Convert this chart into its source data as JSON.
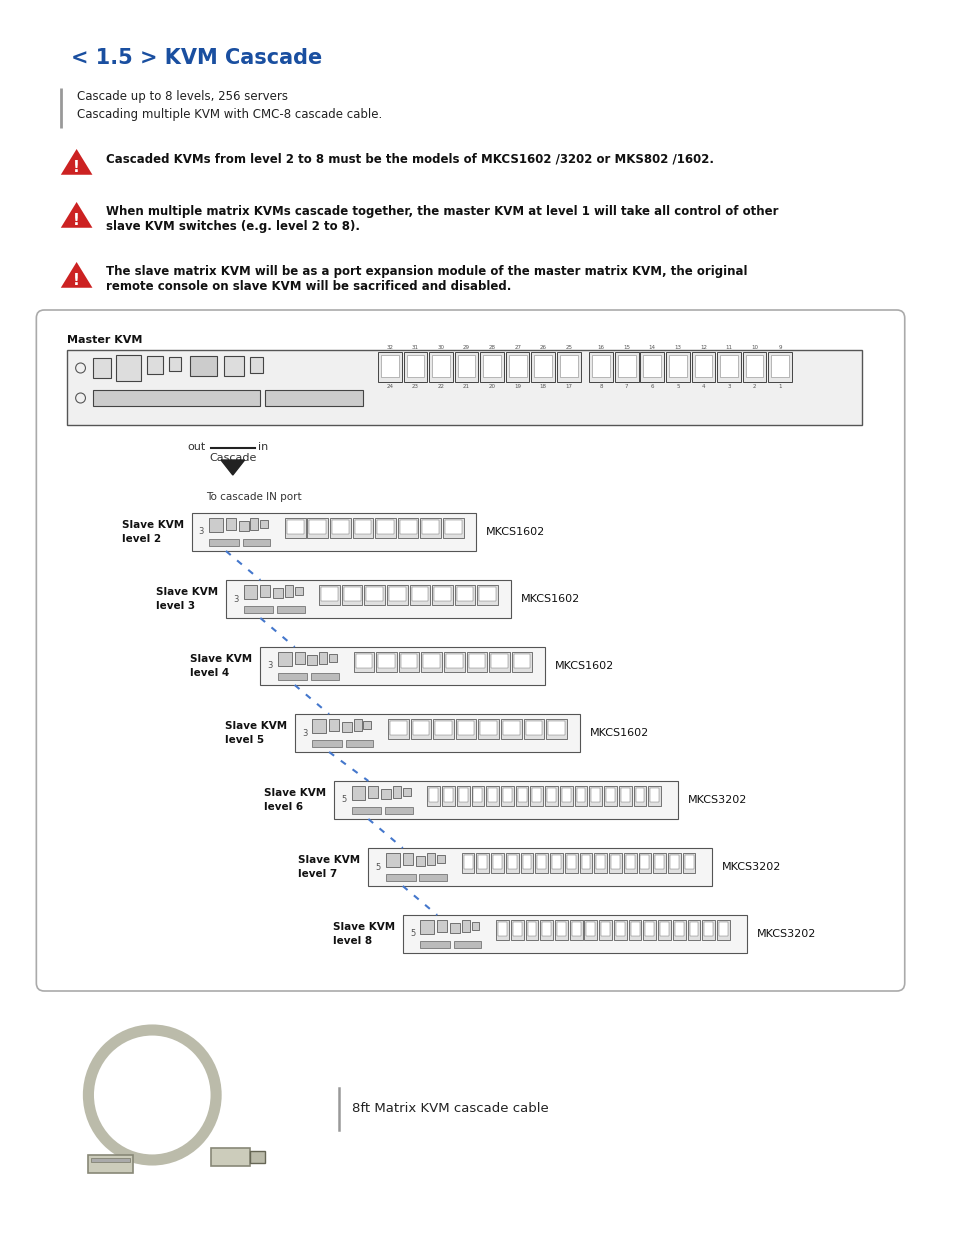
{
  "title": "< 1.5 > KVM Cascade",
  "title_color": "#1a4fa0",
  "title_fontsize": 15,
  "bullet_lines": [
    "Cascade up to 8 levels, 256 servers",
    "Cascading multiple KVM with CMC-8 cascade cable."
  ],
  "warnings": [
    "Cascaded KVMs from level 2 to 8 must be the models of MKCS1602 /3202 or MKS802 /1602.",
    "When multiple matrix KVMs cascade together, the master KVM at level 1 will take all control of other\nslave KVM switches (e.g. level 2 to 8).",
    "The slave matrix KVM will be as a port expansion module of the master matrix KVM, the original\nremote console on slave KVM will be sacrificed and disabled."
  ],
  "cascade_label": "8ft Matrix KVM cascade cable",
  "bg_color": "#ffffff"
}
